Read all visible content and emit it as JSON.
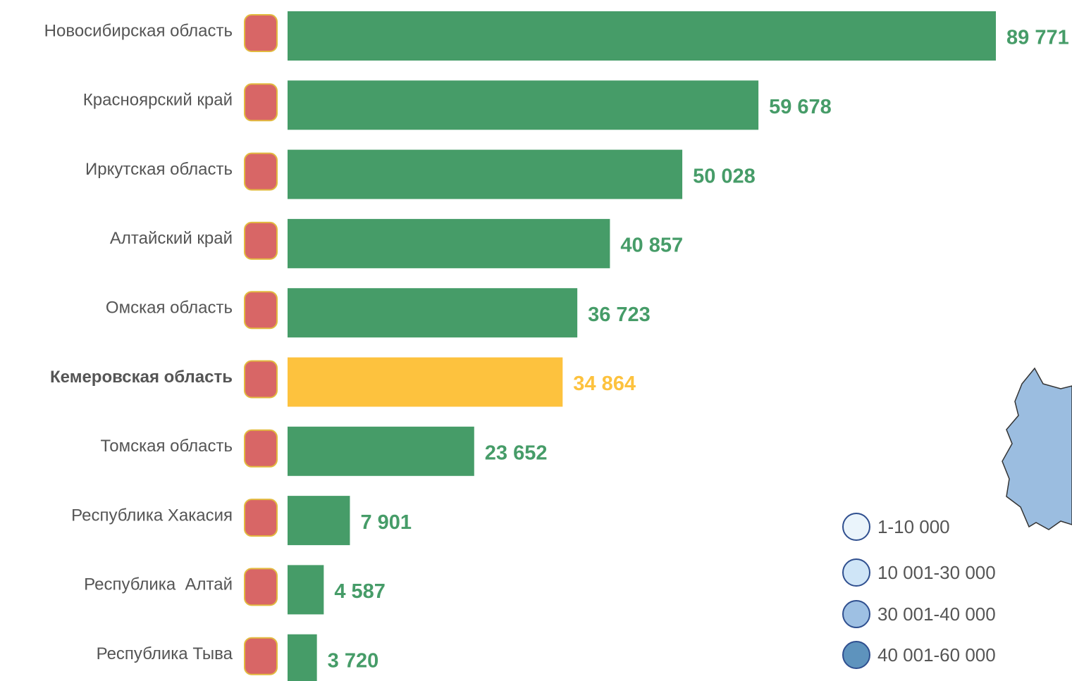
{
  "chart_data": {
    "type": "bar",
    "orientation": "horizontal",
    "categories": [
      "Новосибирская область",
      "Красноярский край",
      "Иркутская область",
      "Алтайский край",
      "Омская область",
      "Кемеровская область",
      "Томская область",
      "Республика Хакасия",
      "Республика  Алтай",
      "Республика Тыва"
    ],
    "values": [
      89771,
      59678,
      50028,
      40857,
      36723,
      34864,
      23652,
      7901,
      4587,
      3720
    ],
    "value_labels": [
      "89 771",
      "59 678",
      "50 028",
      "40 857",
      "36 723",
      "34 864",
      "23 652",
      "7 901",
      "4 587",
      "3 720"
    ],
    "colors": [
      "#469c68",
      "#469c68",
      "#469c68",
      "#469c68",
      "#469c68",
      "#fdc23e",
      "#469c68",
      "#469c68",
      "#469c68",
      "#469c68"
    ],
    "highlight": "Кемеровская область",
    "legend": [
      {
        "label": "1-10 000",
        "color": "#eaf4fb"
      },
      {
        "label": "10 001-30 000",
        "color": "#cfe5f7"
      },
      {
        "label": "30 001-40 000",
        "color": "#9ec0e3"
      },
      {
        "label": "40 001-60 000",
        "color": "#5e93bd"
      }
    ]
  }
}
